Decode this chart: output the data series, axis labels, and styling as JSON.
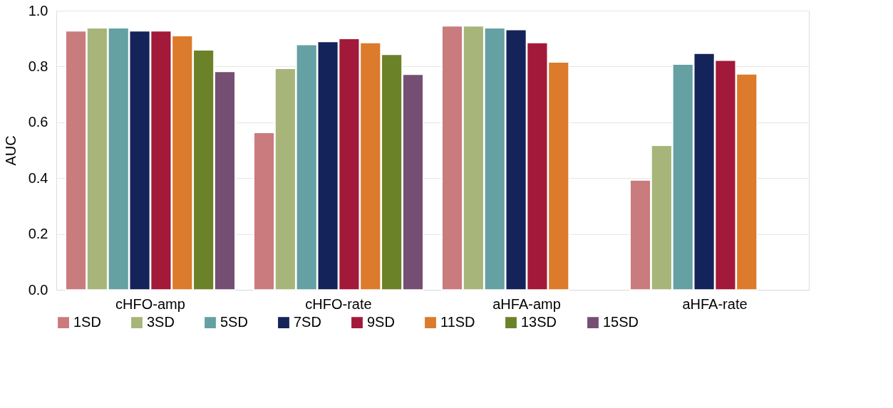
{
  "chart_data": {
    "type": "bar",
    "ylabel": "AUC",
    "categories": [
      "cHFO-amp",
      "cHFO-rate",
      "aHFA-amp",
      "aHFA-rate"
    ],
    "series": [
      {
        "name": "1SD",
        "color": "#c97b7e",
        "values": [
          0.927,
          0.563,
          0.945,
          0.393
        ]
      },
      {
        "name": "3SD",
        "color": "#a8b57a",
        "values": [
          0.938,
          0.793,
          0.945,
          0.517
        ]
      },
      {
        "name": "5SD",
        "color": "#65a0a3",
        "values": [
          0.938,
          0.878,
          0.938,
          0.808
        ]
      },
      {
        "name": "7SD",
        "color": "#14235a",
        "values": [
          0.927,
          0.889,
          0.932,
          0.847
        ]
      },
      {
        "name": "9SD",
        "color": "#a3193a",
        "values": [
          0.927,
          0.9,
          0.885,
          0.822
        ]
      },
      {
        "name": "11SD",
        "color": "#db7b2b",
        "values": [
          0.91,
          0.885,
          0.816,
          0.773
        ]
      },
      {
        "name": "13SD",
        "color": "#6b8228",
        "values": [
          0.859,
          0.843,
          null,
          null
        ]
      },
      {
        "name": "15SD",
        "color": "#744f73",
        "values": [
          0.782,
          0.772,
          null,
          null
        ]
      }
    ],
    "ylim": [
      0,
      1
    ],
    "yticks": [
      {
        "value": 0,
        "label": "0.0"
      },
      {
        "value": 0.2,
        "label": "0.2"
      },
      {
        "value": 0.4,
        "label": "0.4"
      },
      {
        "value": 0.6,
        "label": "0.6"
      },
      {
        "value": 0.8,
        "label": "0.8"
      },
      {
        "value": 1,
        "label": "1.0"
      }
    ],
    "grid": "y",
    "legend": "bottom"
  }
}
